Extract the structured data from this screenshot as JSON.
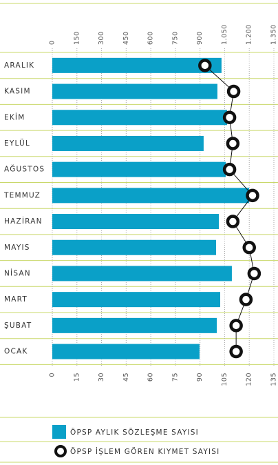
{
  "chart_data": {
    "type": "bar",
    "categories": [
      "ARALIK",
      "KASIM",
      "EKİM",
      "EYLÜL",
      "AĞUSTOS",
      "TEMMUZ",
      "HAZİRAN",
      "MAYIS",
      "NİSAN",
      "MART",
      "ŞUBAT",
      "OCAK"
    ],
    "series": [
      {
        "name": "ÖPSP AYLIK SÖZLEŞME SAYISI",
        "color": "#0aa0c8",
        "values": [
          1031,
          1006,
          1065,
          922,
          1057,
          1199,
          1015,
          998,
          1094,
          1023,
          1002,
          897
        ]
      },
      {
        "name": "ÖPSP İŞLEM GÖREN KIYMET SAYISI",
        "color": "#111111",
        "axis": "x2",
        "values": [
          93,
          110.5,
          108,
          110,
          108,
          122,
          110,
          120,
          123,
          118,
          112,
          112
        ]
      }
    ],
    "xlim": [
      0,
      1350
    ],
    "xticks": [
      0,
      150,
      300,
      450,
      600,
      750,
      900,
      {
        "value": 1050,
        "label": "1.050"
      },
      {
        "value": 1200,
        "label": "1.200"
      },
      {
        "value": 1350,
        "label": "1.350"
      }
    ],
    "x2lim": [
      0,
      135
    ],
    "x2ticks": [
      0,
      15,
      30,
      45,
      60,
      75,
      90,
      105,
      120,
      135
    ],
    "grid": true
  }
}
